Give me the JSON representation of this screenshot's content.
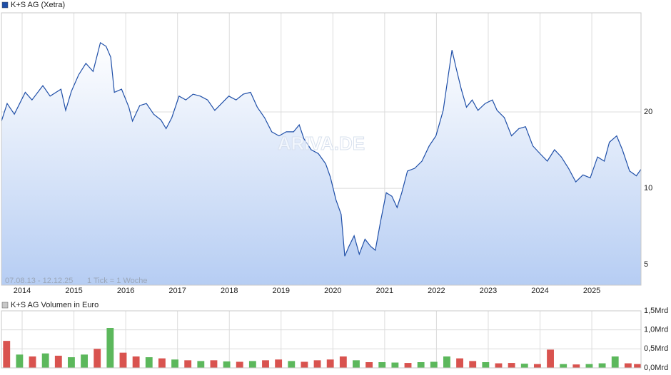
{
  "chart_data": [
    {
      "type": "line",
      "series": [
        {
          "name": "K+S AG (Xetra)",
          "color": "#1f4fa8",
          "values": [
            18.4,
            21.6,
            19.6,
            23.9,
            22.3,
            25.4,
            23.1,
            24.6,
            20.3,
            24.1,
            28.0,
            31.1,
            28.9,
            37.5,
            36.3,
            32.9,
            23.9,
            24.6,
            20.9,
            18.4,
            21.2,
            21.6,
            19.6,
            18.6,
            17.2,
            19.0,
            23.1,
            22.3,
            23.5,
            23.1,
            22.3,
            20.3,
            21.6,
            23.1,
            22.3,
            23.5,
            23.9,
            20.9,
            19.0,
            16.7,
            16.1,
            16.7,
            16.7,
            17.8,
            15.7,
            14.2,
            13.7,
            12.5,
            11.1,
            9.0,
            7.9,
            5.4,
            5.9,
            6.5,
            5.5,
            6.3,
            5.9,
            5.7,
            7.4,
            9.6,
            9.3,
            8.4,
            9.6,
            11.7,
            12.0,
            12.8,
            14.7,
            16.1,
            20.3,
            25.4,
            35.1,
            29.8,
            24.6,
            20.9,
            22.3,
            20.3,
            21.6,
            22.3,
            20.3,
            19.0,
            16.1,
            17.2,
            17.5,
            14.7,
            13.7,
            12.8,
            14.2,
            13.3,
            12.0,
            10.6,
            11.3,
            11.0,
            13.3,
            12.8,
            15.2,
            16.1,
            14.2,
            11.7,
            11.2,
            11.9
          ]
        }
      ],
      "x": [
        2013.6,
        2013.71,
        2013.85,
        2014.06,
        2014.19,
        2014.4,
        2014.54,
        2014.75,
        2014.84,
        2014.95,
        2015.09,
        2015.23,
        2015.37,
        2015.51,
        2015.62,
        2015.71,
        2015.78,
        2015.92,
        2016.06,
        2016.13,
        2016.27,
        2016.4,
        2016.54,
        2016.68,
        2016.78,
        2016.89,
        2017.03,
        2017.16,
        2017.3,
        2017.44,
        2017.58,
        2017.72,
        2017.85,
        2017.99,
        2018.13,
        2018.27,
        2018.41,
        2018.54,
        2018.68,
        2018.82,
        2018.96,
        2019.1,
        2019.24,
        2019.35,
        2019.44,
        2019.58,
        2019.72,
        2019.86,
        2019.95,
        2020.06,
        2020.16,
        2020.23,
        2020.31,
        2020.41,
        2020.51,
        2020.62,
        2020.73,
        2020.82,
        2020.92,
        2021.03,
        2021.14,
        2021.24,
        2021.33,
        2021.44,
        2021.58,
        2021.72,
        2021.86,
        2021.99,
        2022.13,
        2022.2,
        2022.3,
        2022.38,
        2022.48,
        2022.58,
        2022.69,
        2022.8,
        2022.94,
        2023.08,
        2023.17,
        2023.31,
        2023.45,
        2023.59,
        2023.72,
        2023.86,
        2024.0,
        2024.14,
        2024.28,
        2024.41,
        2024.55,
        2024.69,
        2024.83,
        2024.97,
        2025.11,
        2025.24,
        2025.34,
        2025.48,
        2025.59,
        2025.73,
        2025.86,
        2025.95
      ],
      "xlim": [
        2013.6,
        2025.95
      ],
      "xticks": [
        2014,
        2015,
        2016,
        2017,
        2018,
        2019,
        2020,
        2021,
        2022,
        2023,
        2024,
        2025
      ],
      "ylim": [
        4.15,
        49.2
      ],
      "yticks": [
        5,
        10,
        20
      ],
      "log_scale": true,
      "grid": true,
      "fill": true,
      "period": "07.08.13 - 12.12.25",
      "tick_note": "1 Tick = 1 Woche",
      "watermark": "ARIVA.DE"
    },
    {
      "type": "bar",
      "series": [
        {
          "name": "K+S AG Volumen in Euro",
          "color": "#c8c8c8",
          "values": [
            0.71,
            0.35,
            0.3,
            0.38,
            0.32,
            0.28,
            0.35,
            0.5,
            1.05,
            0.4,
            0.3,
            0.28,
            0.25,
            0.22,
            0.2,
            0.18,
            0.2,
            0.17,
            0.16,
            0.18,
            0.2,
            0.22,
            0.18,
            0.16,
            0.2,
            0.22,
            0.3,
            0.2,
            0.15,
            0.15,
            0.14,
            0.13,
            0.15,
            0.16,
            0.3,
            0.25,
            0.18,
            0.15,
            0.12,
            0.13,
            0.11,
            0.1,
            0.48,
            0.1,
            0.09,
            0.1,
            0.12,
            0.3,
            0.12,
            0.1
          ],
          "colors": [
            "#d9534f",
            "#5cb85c",
            "#d9534f",
            "#5cb85c",
            "#d9534f",
            "#5cb85c",
            "#5cb85c",
            "#d9534f",
            "#5cb85c",
            "#d9534f",
            "#d9534f",
            "#5cb85c",
            "#d9534f",
            "#5cb85c",
            "#d9534f",
            "#5cb85c",
            "#d9534f",
            "#5cb85c",
            "#d9534f",
            "#5cb85c",
            "#d9534f",
            "#d9534f",
            "#5cb85c",
            "#d9534f",
            "#d9534f",
            "#d9534f",
            "#d9534f",
            "#5cb85c",
            "#d9534f",
            "#5cb85c",
            "#5cb85c",
            "#d9534f",
            "#5cb85c",
            "#5cb85c",
            "#5cb85c",
            "#d9534f",
            "#d9534f",
            "#5cb85c",
            "#d9534f",
            "#d9534f",
            "#5cb85c",
            "#d9534f",
            "#d9534f",
            "#5cb85c",
            "#d9534f",
            "#5cb85c",
            "#5cb85c",
            "#5cb85c",
            "#d9534f",
            "#d9534f"
          ]
        }
      ],
      "x": [
        2013.7,
        2013.95,
        2014.2,
        2014.45,
        2014.7,
        2014.95,
        2015.2,
        2015.45,
        2015.7,
        2015.95,
        2016.2,
        2016.45,
        2016.7,
        2016.95,
        2017.2,
        2017.45,
        2017.7,
        2017.95,
        2018.2,
        2018.45,
        2018.7,
        2018.95,
        2019.2,
        2019.45,
        2019.7,
        2019.95,
        2020.2,
        2020.45,
        2020.7,
        2020.95,
        2021.2,
        2021.45,
        2021.7,
        2021.95,
        2022.2,
        2022.45,
        2022.7,
        2022.95,
        2023.2,
        2023.45,
        2023.7,
        2023.95,
        2024.2,
        2024.45,
        2024.7,
        2024.95,
        2025.2,
        2025.45,
        2025.7,
        2025.95
      ],
      "xlim": [
        2013.6,
        2025.95
      ],
      "xticks": [
        2014,
        2015,
        2016,
        2017,
        2018,
        2019,
        2020,
        2021,
        2022,
        2023,
        2024,
        2025
      ],
      "ylim": [
        0,
        1.5
      ],
      "yticks": [
        {
          "value": 0,
          "label": "0,0Mrd"
        },
        {
          "value": 0.5,
          "label": "0,5Mrd"
        },
        {
          "value": 1,
          "label": "1,0Mrd"
        },
        {
          "value": 1.5,
          "label": "1,5Mrd"
        }
      ],
      "grid": true
    }
  ]
}
